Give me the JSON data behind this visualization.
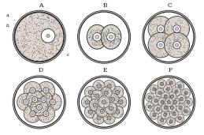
{
  "bg_color": "#ffffff",
  "outer_ring1_color": "#222222",
  "outer_ring2_color": "#444444",
  "cell_fill": "#d8d0c8",
  "cell_edge_color": "#333333",
  "stipple_color": "#555555",
  "nucleus_fill": "#ffffff",
  "nucleus_edge": "#444444",
  "nucleolus_fill": "#aaaaaa",
  "nucleolus_edge": "#555555",
  "label_color": "#111111",
  "labels": [
    "A",
    "B",
    "C",
    "D",
    "E",
    "F"
  ],
  "figsize": [
    2.59,
    1.71
  ],
  "dpi": 100
}
